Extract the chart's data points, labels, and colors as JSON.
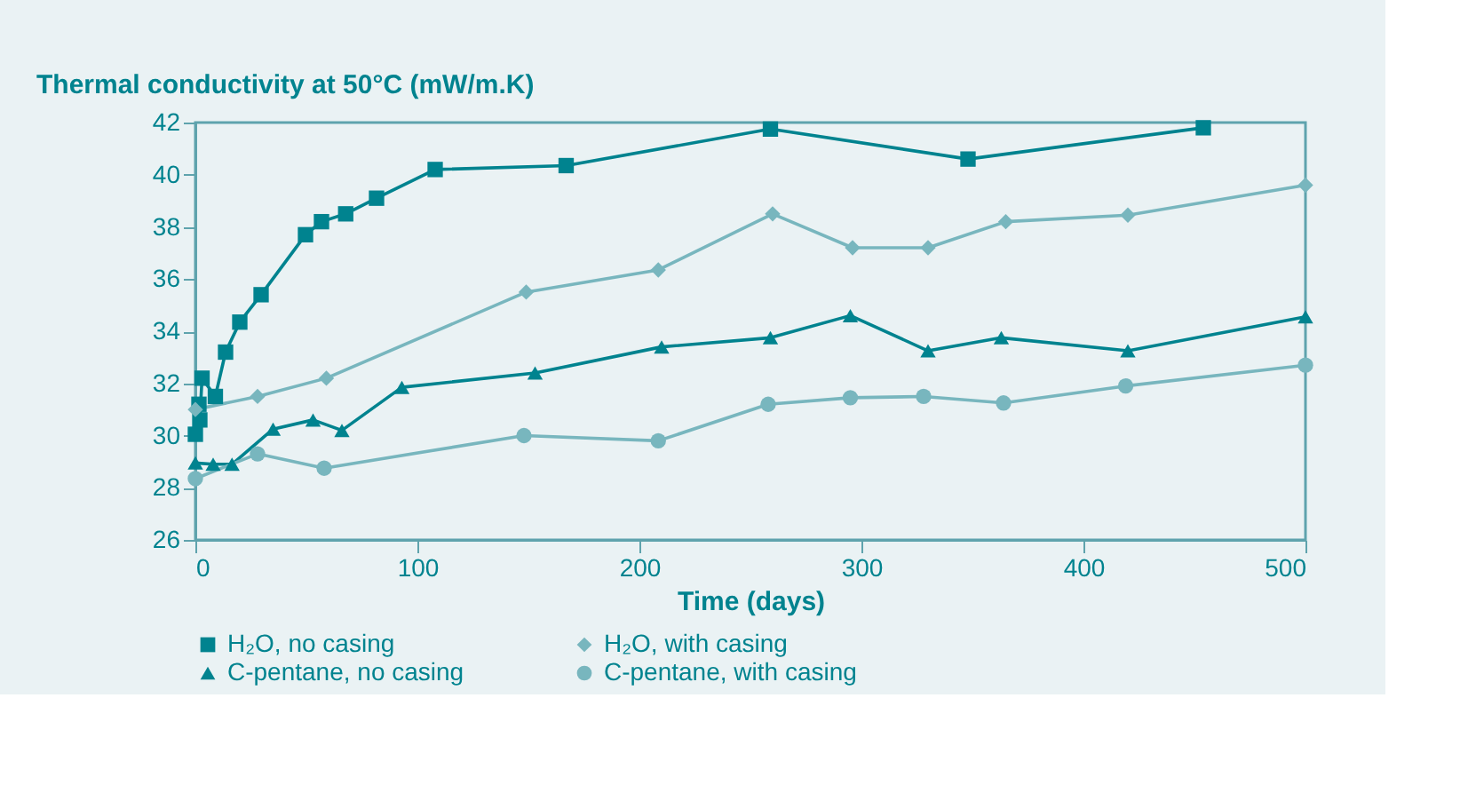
{
  "chart_data": {
    "type": "line",
    "ylabel": "Thermal conductivity at 50°C (mW/m.K)",
    "xlabel": "Time (days)",
    "xlim": [
      0,
      500
    ],
    "xticks": [
      0,
      100,
      200,
      300,
      400,
      500
    ],
    "ylim": [
      26,
      42
    ],
    "yticks": [
      26,
      28,
      30,
      32,
      34,
      36,
      38,
      40,
      42
    ],
    "grid": false,
    "legend": "bottom",
    "series": [
      {
        "name": "H₂O, no casing",
        "color": "#00838f",
        "marker": "square",
        "x": [
          0,
          1.6,
          2,
          3,
          9,
          13.6,
          20,
          29.6,
          49.6,
          56.8,
          67.7,
          81.6,
          108,
          167,
          259,
          348,
          454
        ],
        "values": [
          30.05,
          31.2,
          30.6,
          32.2,
          31.5,
          33.2,
          34.35,
          35.4,
          37.7,
          38.2,
          38.5,
          39.1,
          40.2,
          40.35,
          41.75,
          40.6,
          41.8
        ]
      },
      {
        "name": "H₂O, with casing",
        "color": "#78b6be",
        "marker": "diamond",
        "x": [
          0,
          28,
          59,
          149,
          208.5,
          260,
          296,
          330,
          365,
          420,
          500
        ],
        "values": [
          31.0,
          31.5,
          32.2,
          35.5,
          36.35,
          38.5,
          37.2,
          37.2,
          38.2,
          38.45,
          39.6
        ]
      },
      {
        "name": "C-pentane, no casing",
        "color": "#00838f",
        "marker": "triangle",
        "x": [
          0,
          8,
          16.5,
          35,
          53,
          66,
          93,
          153,
          210,
          259,
          295,
          330,
          363,
          420,
          500
        ],
        "values": [
          28.95,
          28.9,
          28.9,
          30.25,
          30.6,
          30.2,
          31.85,
          32.4,
          33.4,
          33.75,
          34.6,
          33.25,
          33.75,
          33.25,
          34.55
        ]
      },
      {
        "name": "C-pentane, with casing",
        "color": "#78b6be",
        "marker": "circle",
        "x": [
          0,
          28,
          58,
          148,
          208.5,
          258,
          295,
          328,
          364,
          419,
          500
        ],
        "values": [
          28.35,
          29.3,
          28.75,
          30.0,
          29.8,
          31.2,
          31.45,
          31.5,
          31.25,
          31.9,
          32.7
        ]
      }
    ]
  }
}
